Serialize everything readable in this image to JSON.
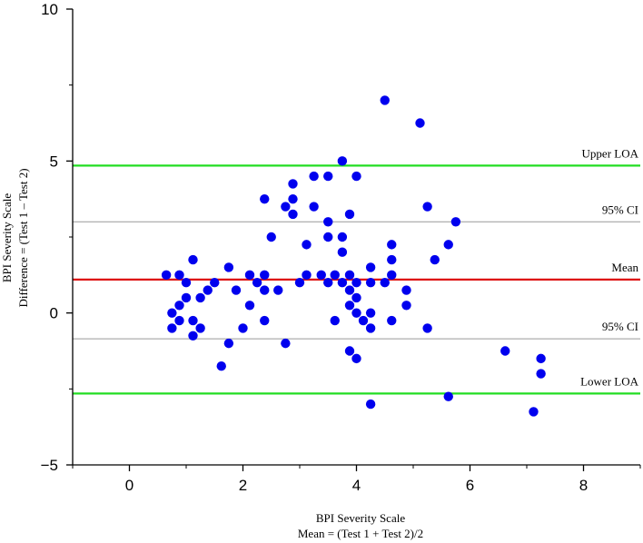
{
  "chart_data": {
    "type": "scatter",
    "xlabel": [
      "BPI Severity Scale",
      "Mean = (Test 1 + Test 2)/2"
    ],
    "ylabel": [
      "BPI Severity Scale",
      "Difference = (Test 1 – Test 2)"
    ],
    "xlim": [
      -1,
      9
    ],
    "ylim": [
      -5,
      10
    ],
    "x_ticks": [
      0,
      2,
      4,
      6,
      8
    ],
    "x_tick_labels": [
      "0",
      "2",
      "4",
      "6",
      "8"
    ],
    "y_ticks": [
      -5,
      0,
      5,
      10
    ],
    "y_tick_labels": [
      "−5",
      "0",
      "5",
      "10"
    ],
    "grid": false,
    "point_color": "#0000ee",
    "reference_lines": [
      {
        "label": "Upper LOA",
        "y": 4.85,
        "color": "#22dd22"
      },
      {
        "label": "95% CI",
        "y": 3.0,
        "color": "#999999"
      },
      {
        "label": "Mean",
        "y": 1.1,
        "color": "#dd1111"
      },
      {
        "label": "95% CI",
        "y": -0.85,
        "color": "#999999"
      },
      {
        "label": "Lower LOA",
        "y": -2.65,
        "color": "#22dd22"
      }
    ],
    "points": [
      [
        0.65,
        1.25
      ],
      [
        0.75,
        0.0
      ],
      [
        0.75,
        -0.5
      ],
      [
        0.88,
        1.25
      ],
      [
        0.88,
        0.25
      ],
      [
        0.88,
        -0.25
      ],
      [
        1.0,
        1.0
      ],
      [
        1.0,
        0.5
      ],
      [
        1.12,
        1.75
      ],
      [
        1.12,
        -0.25
      ],
      [
        1.12,
        -0.75
      ],
      [
        1.25,
        0.5
      ],
      [
        1.25,
        -0.5
      ],
      [
        1.38,
        0.75
      ],
      [
        1.5,
        1.0
      ],
      [
        1.62,
        -1.75
      ],
      [
        1.75,
        1.5
      ],
      [
        1.75,
        -1.0
      ],
      [
        1.88,
        0.75
      ],
      [
        2.0,
        -0.5
      ],
      [
        2.12,
        1.25
      ],
      [
        2.12,
        0.25
      ],
      [
        2.25,
        1.0
      ],
      [
        2.38,
        3.75
      ],
      [
        2.38,
        1.25
      ],
      [
        2.38,
        0.75
      ],
      [
        2.38,
        -0.25
      ],
      [
        2.5,
        2.5
      ],
      [
        2.62,
        0.75
      ],
      [
        2.75,
        3.5
      ],
      [
        2.75,
        -1.0
      ],
      [
        2.88,
        4.25
      ],
      [
        2.88,
        3.75
      ],
      [
        2.88,
        3.25
      ],
      [
        3.0,
        1.0
      ],
      [
        3.12,
        2.25
      ],
      [
        3.12,
        1.25
      ],
      [
        3.25,
        4.5
      ],
      [
        3.25,
        3.5
      ],
      [
        3.38,
        1.25
      ],
      [
        3.5,
        4.5
      ],
      [
        3.5,
        3.0
      ],
      [
        3.5,
        2.5
      ],
      [
        3.5,
        1.0
      ],
      [
        3.62,
        1.25
      ],
      [
        3.62,
        -0.25
      ],
      [
        3.75,
        5.0
      ],
      [
        3.75,
        2.5
      ],
      [
        3.75,
        2.0
      ],
      [
        3.75,
        1.0
      ],
      [
        3.88,
        3.25
      ],
      [
        3.88,
        1.25
      ],
      [
        3.88,
        0.75
      ],
      [
        3.88,
        0.25
      ],
      [
        3.88,
        -1.25
      ],
      [
        4.0,
        4.5
      ],
      [
        4.0,
        1.0
      ],
      [
        4.0,
        0.5
      ],
      [
        4.0,
        0.0
      ],
      [
        4.0,
        -1.5
      ],
      [
        4.12,
        -0.25
      ],
      [
        4.25,
        1.5
      ],
      [
        4.25,
        1.0
      ],
      [
        4.25,
        0.0
      ],
      [
        4.25,
        -0.5
      ],
      [
        4.25,
        -3.0
      ],
      [
        4.5,
        7.0
      ],
      [
        4.5,
        1.0
      ],
      [
        4.62,
        2.25
      ],
      [
        4.62,
        1.75
      ],
      [
        4.62,
        1.25
      ],
      [
        4.62,
        -0.25
      ],
      [
        4.88,
        0.75
      ],
      [
        4.88,
        0.25
      ],
      [
        5.12,
        6.25
      ],
      [
        5.25,
        3.5
      ],
      [
        5.25,
        -0.5
      ],
      [
        5.38,
        1.75
      ],
      [
        5.62,
        2.25
      ],
      [
        5.62,
        -2.75
      ],
      [
        5.75,
        3.0
      ],
      [
        6.62,
        -1.25
      ],
      [
        7.12,
        -3.25
      ],
      [
        7.25,
        -1.5
      ],
      [
        7.25,
        -2.0
      ]
    ]
  }
}
